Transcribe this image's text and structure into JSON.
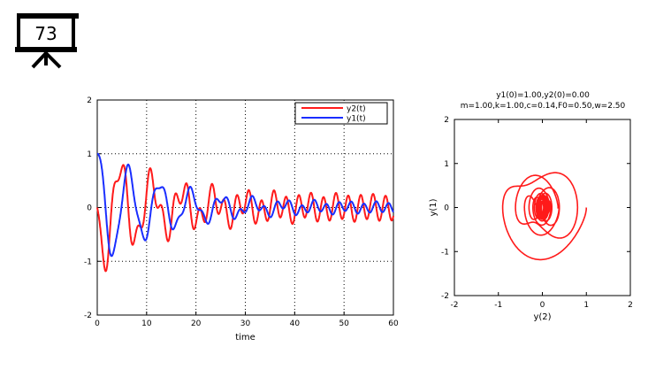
{
  "slide": {
    "number": "73"
  },
  "chart_data": [
    {
      "type": "line",
      "title": "",
      "xlabel": "time",
      "ylabel": "",
      "xlim": [
        0,
        60
      ],
      "ylim": [
        -2,
        2
      ],
      "xticks": [
        "0",
        "10",
        "20",
        "30",
        "40",
        "50",
        "60"
      ],
      "yticks": [
        "-2",
        "-1",
        "0",
        "1",
        "2"
      ],
      "grid": true,
      "legend_position": "top-right",
      "series": [
        {
          "name": "y2(t)",
          "color": "#ff1a1a"
        },
        {
          "name": "y1(t)",
          "color": "#1a2eff"
        }
      ],
      "model": {
        "m": 1.0,
        "k": 1.0,
        "c": 0.14,
        "F0": 0.5,
        "w": 2.5,
        "y1_0": 1.0,
        "y2_0": 0.0,
        "t_max": 60
      }
    },
    {
      "type": "line",
      "title_line1": "y1(0)=1.00,y2(0)=0.00",
      "title_line2": "m=1.00,k=1.00,c=0.14,F0=0.50,w=2.50",
      "xlabel": "y(2)",
      "ylabel": "y(1)",
      "xlim": [
        -2,
        2
      ],
      "ylim": [
        -2,
        2
      ],
      "xticks": [
        "-2",
        "-1",
        "0",
        "1",
        "2"
      ],
      "yticks": [
        "-2",
        "-1",
        "0",
        "1",
        "2"
      ],
      "grid": false,
      "series": [
        {
          "color": "#ff1a1a"
        }
      ]
    }
  ]
}
